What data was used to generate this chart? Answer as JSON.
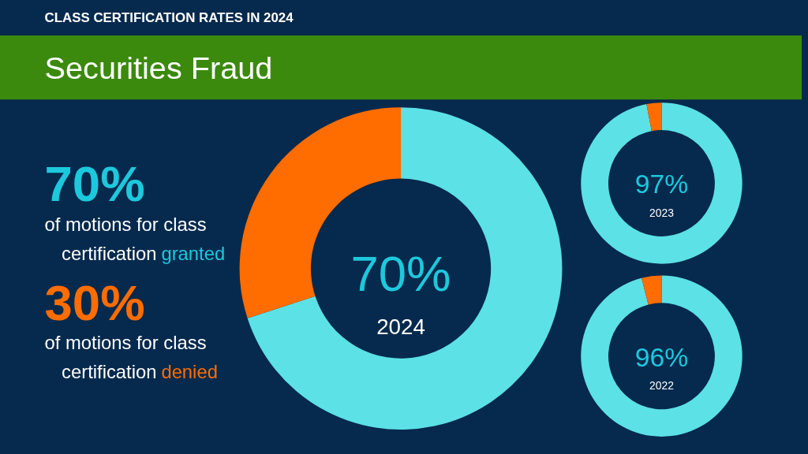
{
  "chart_data": [
    {
      "type": "donut",
      "subtitle": "CLASS CERTIFICATION RATES IN 2024",
      "title": "Securities Fraud",
      "categories": [
        null,
        null
      ],
      "values": [
        70,
        30
      ],
      "colors": [
        "#5ce1e6",
        "#ff6c00"
      ],
      "annotations": [
        "70%",
        "of motions for class",
        "certification granted",
        "30%",
        "of motions for class",
        "certification denied",
        "70%",
        "2024"
      ]
    },
    {
      "type": "donut",
      "categories": [
        null,
        null
      ],
      "values": [
        97,
        3
      ],
      "colors": [
        "#5ce1e6",
        "#ff6c00"
      ],
      "annotations": [
        "97%",
        "2023"
      ]
    },
    {
      "type": "donut",
      "categories": [
        null,
        null
      ],
      "values": [
        96,
        4
      ],
      "colors": [
        "#5ce1e6",
        "#ff6c00"
      ],
      "annotations": [
        "96%",
        "2022"
      ]
    }
  ]
}
